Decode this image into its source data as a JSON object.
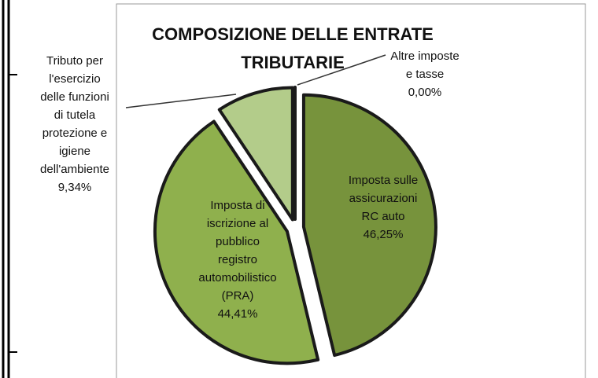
{
  "chart_data": {
    "type": "pie",
    "title": "COMPOSIZIONE DELLE ENTRATE TRIBUTARIE",
    "categories": [
      "Imposta sulle assicurazioni RC auto",
      "Imposta di iscrizione al pubblico registro automobilistico (PRA)",
      "Tributo per l'esercizio delle funzioni di tutela protezione e igiene dell'ambiente",
      "Altre imposte e tasse"
    ],
    "values": [
      46.25,
      44.41,
      9.34,
      0.0
    ],
    "value_labels": [
      "46,25%",
      "44,41%",
      "9,34%",
      "0,00%"
    ],
    "colors": [
      "#77933c",
      "#8fb04d",
      "#b3cc8a",
      "#d7e4bd"
    ]
  }
}
